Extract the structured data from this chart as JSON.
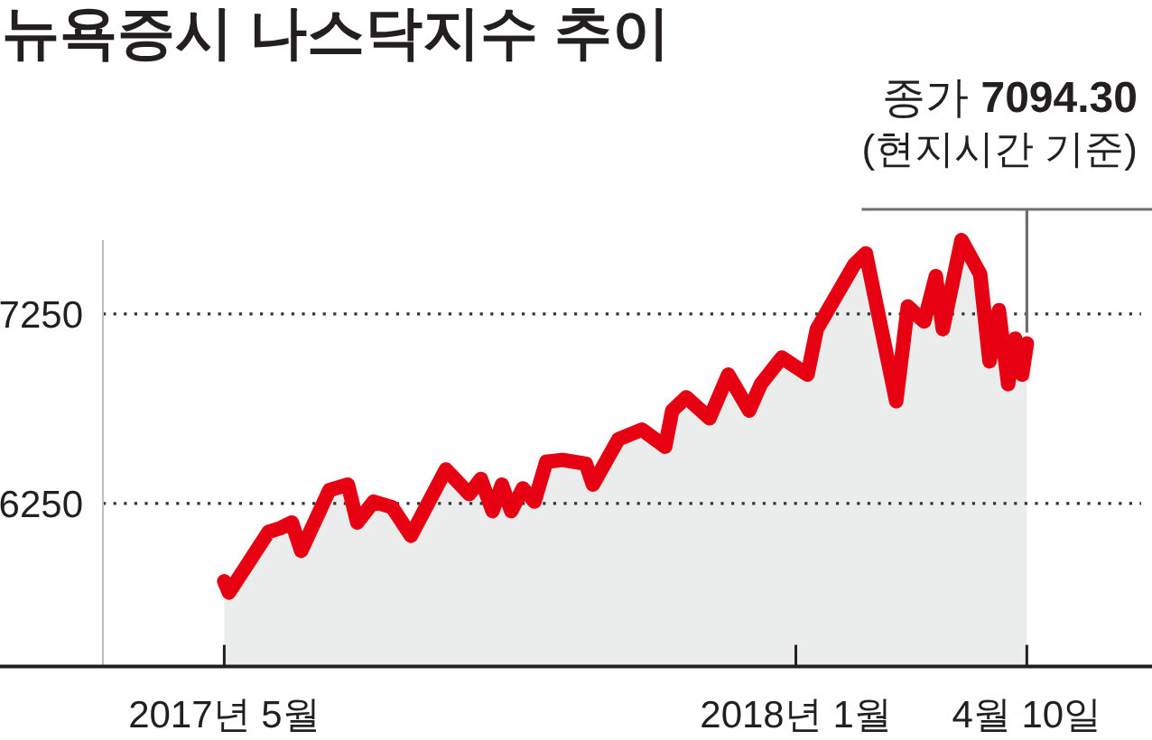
{
  "chart_data": {
    "type": "area",
    "title": "뉴욕증시 나스닥지수 추이",
    "x": [
      "2017-05-01",
      "2017-05-03",
      "2017-05-20",
      "2017-05-25",
      "2017-05-30",
      "2017-06-03",
      "2017-06-15",
      "2017-06-23",
      "2017-06-27",
      "2017-07-04",
      "2017-07-12",
      "2017-07-20",
      "2017-08-04",
      "2017-08-14",
      "2017-08-19",
      "2017-08-24",
      "2017-08-28",
      "2017-09-01",
      "2017-09-06",
      "2017-09-11",
      "2017-09-16",
      "2017-09-23",
      "2017-10-03",
      "2017-10-06",
      "2017-10-17",
      "2017-10-27",
      "2017-11-06",
      "2017-11-09",
      "2017-11-15",
      "2017-11-25",
      "2017-12-03",
      "2017-12-12",
      "2017-12-17",
      "2017-12-26",
      "2018-01-06",
      "2018-01-10",
      "2018-01-18",
      "2018-01-26",
      "2018-01-31",
      "2018-02-13",
      "2018-02-18",
      "2018-02-25",
      "2018-03-02",
      "2018-03-05",
      "2018-03-13",
      "2018-03-21",
      "2018-03-25",
      "2018-03-29",
      "2018-04-02",
      "2018-04-05",
      "2018-04-08",
      "2018-04-10"
    ],
    "series": [
      {
        "color": "#e60012",
        "values": [
          5840,
          5780,
          6100,
          6120,
          6150,
          6000,
          6320,
          6350,
          6150,
          6260,
          6230,
          6080,
          6430,
          6300,
          6380,
          6210,
          6350,
          6210,
          6330,
          6260,
          6470,
          6480,
          6460,
          6350,
          6590,
          6640,
          6550,
          6740,
          6810,
          6700,
          6930,
          6740,
          6880,
          7020,
          6930,
          7170,
          7340,
          7510,
          7570,
          6790,
          7290,
          7210,
          7450,
          7170,
          7640,
          7460,
          7000,
          7270,
          6880,
          7120,
          6930,
          7094.3
        ]
      }
    ],
    "xlim": [
      "2017-03-10",
      "2018-05-29"
    ],
    "xticks": [
      {
        "value": "2017-05",
        "label": "2017년 5월"
      },
      {
        "value": "2018-01",
        "label": "2018년 1월"
      },
      {
        "value": "2018-04-10",
        "label": "4월 10일"
      }
    ],
    "ylim": [
      5390,
      7640
    ],
    "yticks": [
      6250,
      7250
    ],
    "grid": "y",
    "annotations": [
      "종가 **7094.30**",
      {
        "text": "(현지시간 기준)",
        "x": "2018-04-10",
        "y": 7094.3
      }
    ]
  }
}
